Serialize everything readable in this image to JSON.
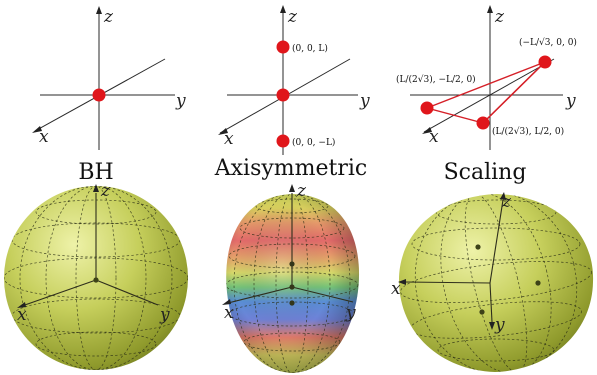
{
  "titles": {
    "bh": "BH",
    "axisymmetric": "Axisymmetric",
    "scaling": "Scaling"
  },
  "axis_labels": {
    "x": "x",
    "y": "y",
    "z": "z"
  },
  "point_labels": {
    "axisym_top": "(0, 0, L)",
    "axisym_bottom": "(0, 0, −L)",
    "scaling_top": "(−L/√3, 0, 0)",
    "scaling_left": "(L/(2√3), −L/2, 0)",
    "scaling_bottom": "(L/(2√3), L/2, 0)"
  },
  "colors": {
    "mass_point": "#e0161b",
    "triangle_edge": "#d52028",
    "sphere_base": "#c8d160",
    "grid": "#2b2f16"
  }
}
